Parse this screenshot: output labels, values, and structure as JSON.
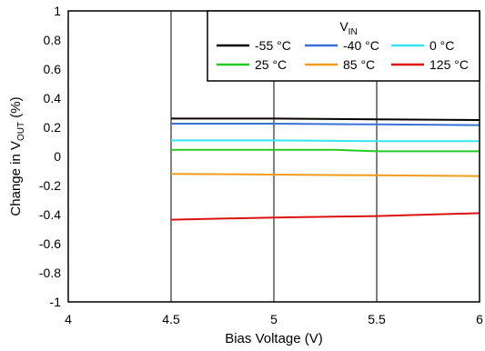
{
  "chart_data": {
    "type": "line",
    "title": "",
    "xlabel": "Bias Voltage (V)",
    "ylabel_main": "Change in V",
    "ylabel_sub": "OUT",
    "ylabel_tail": " (%)",
    "xlim": [
      4,
      6
    ],
    "ylim": [
      -1,
      1
    ],
    "xticks": [
      4,
      4.5,
      5,
      5.5,
      6
    ],
    "yticks": [
      -1,
      -0.8,
      -0.6,
      -0.4,
      -0.2,
      0,
      0.2,
      0.4,
      0.6,
      0.8,
      1
    ],
    "xtick_labels": [
      "4",
      "4.5",
      "5",
      "5.5",
      "6"
    ],
    "ytick_labels": [
      "-1",
      "-0.8",
      "-0.6",
      "-0.4",
      "-0.2",
      "0",
      "0.2",
      "0.4",
      "0.6",
      "0.8",
      "1"
    ],
    "grid": "vertical",
    "legend": {
      "title_main": "V",
      "title_sub": "IN",
      "placement": "top-right"
    },
    "series": [
      {
        "name": "-55 °C",
        "color": "#000000",
        "x": [
          4.5,
          5.0,
          5.5,
          6.0
        ],
        "y": [
          0.26,
          0.26,
          0.255,
          0.25
        ]
      },
      {
        "name": "-40 °C",
        "color": "#3a6fd8",
        "x": [
          4.5,
          5.0,
          5.5,
          6.0
        ],
        "y": [
          0.225,
          0.225,
          0.22,
          0.215
        ]
      },
      {
        "name": "0 °C",
        "color": "#33e6f0",
        "x": [
          4.5,
          5.0,
          5.5,
          6.0
        ],
        "y": [
          0.11,
          0.11,
          0.105,
          0.105
        ]
      },
      {
        "name": "25 °C",
        "color": "#22cc22",
        "x": [
          4.5,
          5.0,
          5.3,
          5.5,
          6.0
        ],
        "y": [
          0.045,
          0.045,
          0.045,
          0.035,
          0.035
        ]
      },
      {
        "name": "85 °C",
        "color": "#f39b1c",
        "x": [
          4.5,
          5.0,
          5.5,
          6.0
        ],
        "y": [
          -0.12,
          -0.125,
          -0.13,
          -0.135
        ]
      },
      {
        "name": "125 °C",
        "color": "#dd1111",
        "x": [
          4.5,
          5.0,
          5.5,
          6.0
        ],
        "y": [
          -0.435,
          -0.42,
          -0.41,
          -0.39
        ]
      }
    ]
  }
}
